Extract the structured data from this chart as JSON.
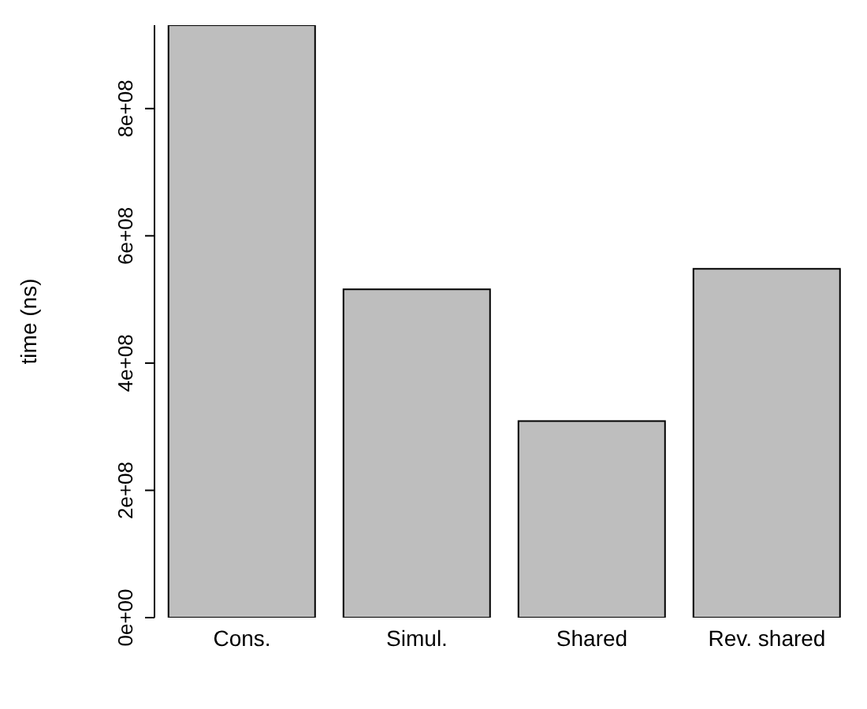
{
  "chart_data": {
    "type": "bar",
    "ylabel": "time (ns)",
    "categories": [
      "Cons.",
      "Simul.",
      "Shared",
      "Rev. shared"
    ],
    "values": [
      931000000,
      516000000,
      309000000,
      548000000
    ],
    "color": "#bebebe",
    "ylim": [
      0,
      931000000
    ],
    "yticks": [
      {
        "value": 0,
        "label": "0e+00"
      },
      {
        "value": 200000000,
        "label": "2e+08"
      },
      {
        "value": 400000000,
        "label": "4e+08"
      },
      {
        "value": 600000000,
        "label": "6e+08"
      },
      {
        "value": 800000000,
        "label": "8e+08"
      }
    ],
    "grid": false
  }
}
